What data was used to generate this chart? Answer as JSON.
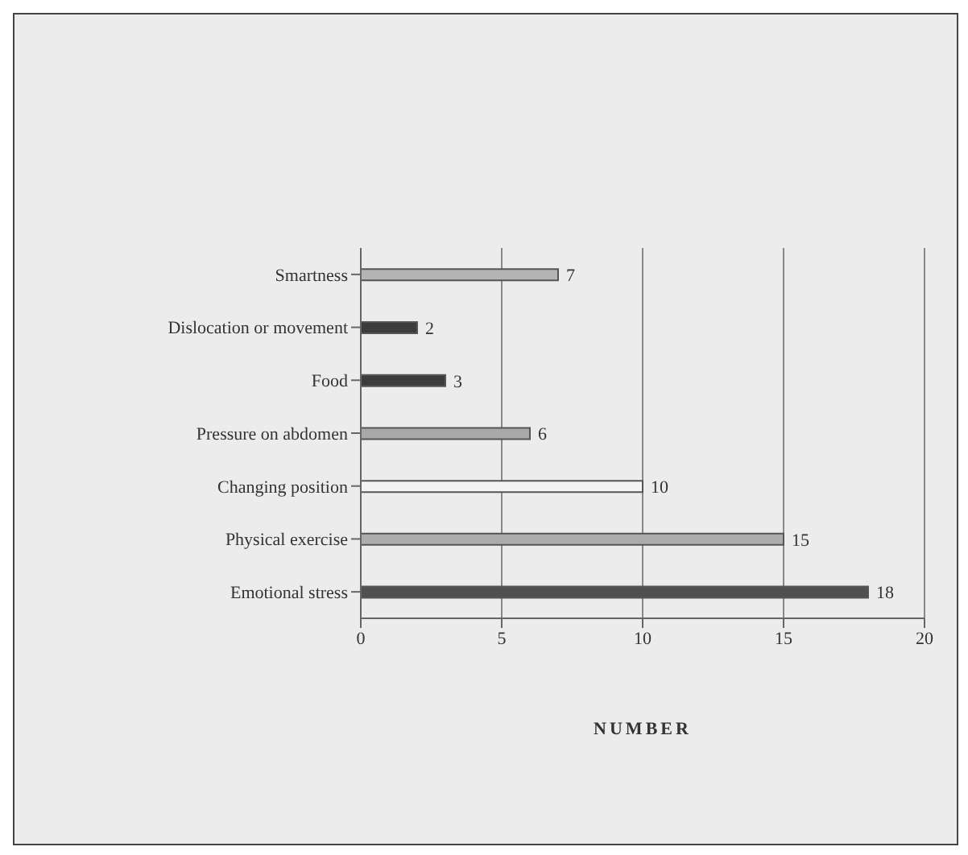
{
  "chart_data": {
    "type": "bar",
    "orientation": "horizontal",
    "categories": [
      "Smartness",
      "Dislocation or movement",
      "Food",
      "Pressure on abdomen",
      "Changing position",
      "Physical exercise",
      "Emotional stress"
    ],
    "values": [
      7,
      2,
      3,
      6,
      10,
      15,
      18
    ],
    "colors": [
      "#b4b4b4",
      "#3c3c3c",
      "#3c3c3c",
      "#a8a8a8",
      "#f4f4f4",
      "#acacac",
      "#505050"
    ],
    "xlabel": "NUMBER",
    "xlim": [
      0,
      20
    ],
    "xticks": [
      0,
      5,
      10,
      15,
      20
    ],
    "grid": "x",
    "data_labels": true
  }
}
